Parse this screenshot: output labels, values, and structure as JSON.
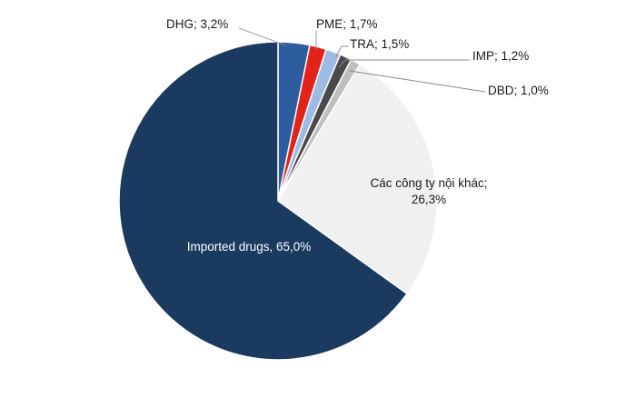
{
  "chart_data": {
    "type": "pie",
    "title": "",
    "start_angle_deg": 0,
    "direction": "clockwise",
    "legend": "none",
    "slices": [
      {
        "name": "DHG",
        "value": 3.2,
        "label": "DHG; 3,2%",
        "color": "#2e5d9f"
      },
      {
        "name": "PME",
        "value": 1.7,
        "label": "PME; 1,7%",
        "color": "#e2231a"
      },
      {
        "name": "TRA",
        "value": 1.5,
        "label": "TRA; 1,5%",
        "color": "#9dbbe3"
      },
      {
        "name": "IMP",
        "value": 1.2,
        "label": "IMP; 1,2%",
        "color": "#4a4a4a"
      },
      {
        "name": "DBD",
        "value": 1.0,
        "label": "DBD; 1,0%",
        "color": "#bfbfbf"
      },
      {
        "name": "Các công ty nội khác",
        "value": 26.3,
        "label": [
          "Các công ty nội khác;",
          "26,3%"
        ],
        "color": "#f0f0f0"
      },
      {
        "name": "Imported drugs",
        "value": 65.0,
        "label": "Imported drugs, 65,0%",
        "color": "#1b3a60"
      }
    ]
  }
}
